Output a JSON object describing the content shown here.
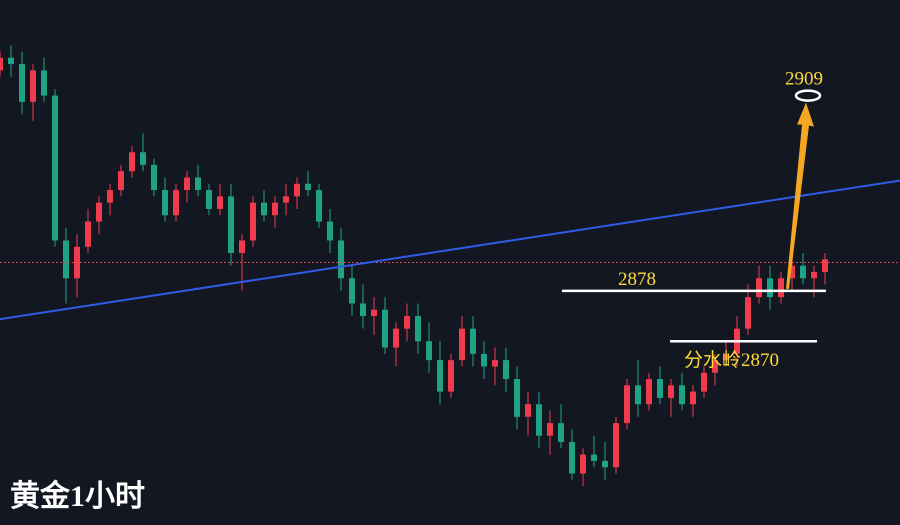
{
  "chart_title": "黄金1小时",
  "colors": {
    "background": "#131722",
    "up": "#ef3b4d",
    "down": "#1fa384",
    "trendline": "#2f5be6",
    "level_line": "#ffffff",
    "annotation_text": "#ffd93b",
    "arrow": "#f5a623",
    "current_price_line": "#e0454f"
  },
  "chart_data": {
    "type": "candlestick",
    "title": "黄金1小时",
    "ylim": [
      2844,
      2921
    ],
    "candles": [
      [
        2913,
        2916,
        2912,
        2915
      ],
      [
        2915,
        2917,
        2912,
        2914
      ],
      [
        2914,
        2916,
        2906,
        2908
      ],
      [
        2908,
        2914,
        2905,
        2913
      ],
      [
        2913,
        2915,
        2908,
        2909
      ],
      [
        2909,
        2910,
        2885,
        2886
      ],
      [
        2886,
        2888,
        2876,
        2880
      ],
      [
        2880,
        2887,
        2877,
        2885
      ],
      [
        2885,
        2891,
        2884,
        2889
      ],
      [
        2889,
        2893,
        2887,
        2892
      ],
      [
        2892,
        2895,
        2890,
        2894
      ],
      [
        2894,
        2898,
        2893,
        2897
      ],
      [
        2897,
        2901,
        2896,
        2900
      ],
      [
        2900,
        2903,
        2897,
        2898
      ],
      [
        2898,
        2899,
        2893,
        2894
      ],
      [
        2894,
        2896,
        2889,
        2890
      ],
      [
        2890,
        2895,
        2889,
        2894
      ],
      [
        2894,
        2897,
        2892,
        2896
      ],
      [
        2896,
        2898,
        2893,
        2894
      ],
      [
        2894,
        2895,
        2890,
        2891
      ],
      [
        2891,
        2895,
        2890,
        2893
      ],
      [
        2893,
        2895,
        2882,
        2884
      ],
      [
        2884,
        2887,
        2878,
        2886
      ],
      [
        2886,
        2893,
        2885,
        2892
      ],
      [
        2892,
        2894,
        2889,
        2890
      ],
      [
        2890,
        2893,
        2888,
        2892
      ],
      [
        2892,
        2895,
        2890,
        2893
      ],
      [
        2893,
        2896,
        2891,
        2895
      ],
      [
        2895,
        2897,
        2893,
        2894
      ],
      [
        2894,
        2895,
        2888,
        2889
      ],
      [
        2889,
        2891,
        2884,
        2886
      ],
      [
        2886,
        2888,
        2878,
        2880
      ],
      [
        2880,
        2882,
        2874,
        2876
      ],
      [
        2876,
        2879,
        2872,
        2874
      ],
      [
        2874,
        2877,
        2871,
        2875
      ],
      [
        2875,
        2877,
        2868,
        2869
      ],
      [
        2869,
        2873,
        2866,
        2872
      ],
      [
        2872,
        2876,
        2870,
        2874
      ],
      [
        2874,
        2876,
        2868,
        2870
      ],
      [
        2870,
        2873,
        2865,
        2867
      ],
      [
        2867,
        2870,
        2860,
        2862
      ],
      [
        2862,
        2868,
        2861,
        2867
      ],
      [
        2867,
        2874,
        2866,
        2872
      ],
      [
        2872,
        2874,
        2866,
        2868
      ],
      [
        2868,
        2870,
        2864,
        2866
      ],
      [
        2866,
        2869,
        2863,
        2867
      ],
      [
        2867,
        2869,
        2862,
        2864
      ],
      [
        2864,
        2866,
        2856,
        2858
      ],
      [
        2858,
        2862,
        2855,
        2860
      ],
      [
        2860,
        2862,
        2853,
        2855
      ],
      [
        2855,
        2859,
        2852,
        2857
      ],
      [
        2857,
        2860,
        2853,
        2854
      ],
      [
        2854,
        2856,
        2848,
        2849
      ],
      [
        2849,
        2853,
        2847,
        2852
      ],
      [
        2852,
        2855,
        2850,
        2851
      ],
      [
        2851,
        2854,
        2848,
        2850
      ],
      [
        2850,
        2858,
        2849,
        2857
      ],
      [
        2857,
        2864,
        2856,
        2863
      ],
      [
        2863,
        2867,
        2858,
        2860
      ],
      [
        2860,
        2865,
        2859,
        2864
      ],
      [
        2864,
        2866,
        2860,
        2861
      ],
      [
        2861,
        2864,
        2858,
        2863
      ],
      [
        2863,
        2865,
        2859,
        2860
      ],
      [
        2860,
        2863,
        2858,
        2862
      ],
      [
        2862,
        2866,
        2861,
        2865
      ],
      [
        2865,
        2868,
        2863,
        2867
      ],
      [
        2867,
        2870,
        2866,
        2868
      ],
      [
        2868,
        2874,
        2866,
        2872
      ],
      [
        2872,
        2879,
        2871,
        2877
      ],
      [
        2877,
        2882,
        2876,
        2880
      ],
      [
        2880,
        2882,
        2875,
        2877
      ],
      [
        2877,
        2881,
        2876,
        2880
      ],
      [
        2880,
        2883,
        2878,
        2882
      ],
      [
        2882,
        2884,
        2879,
        2880
      ],
      [
        2880,
        2882,
        2877,
        2881
      ],
      [
        2881,
        2884,
        2879,
        2883
      ]
    ],
    "trendline": [
      [
        0,
        2873.5
      ],
      [
        1,
        2895.5
      ]
    ],
    "current_price": 2882.5,
    "annotations": {
      "resistance_label": "2878",
      "resistance_value": 2878,
      "pivot_label": "分水岭2870",
      "pivot_value": 2870,
      "target_label": "2909",
      "target_value": 2909
    }
  }
}
